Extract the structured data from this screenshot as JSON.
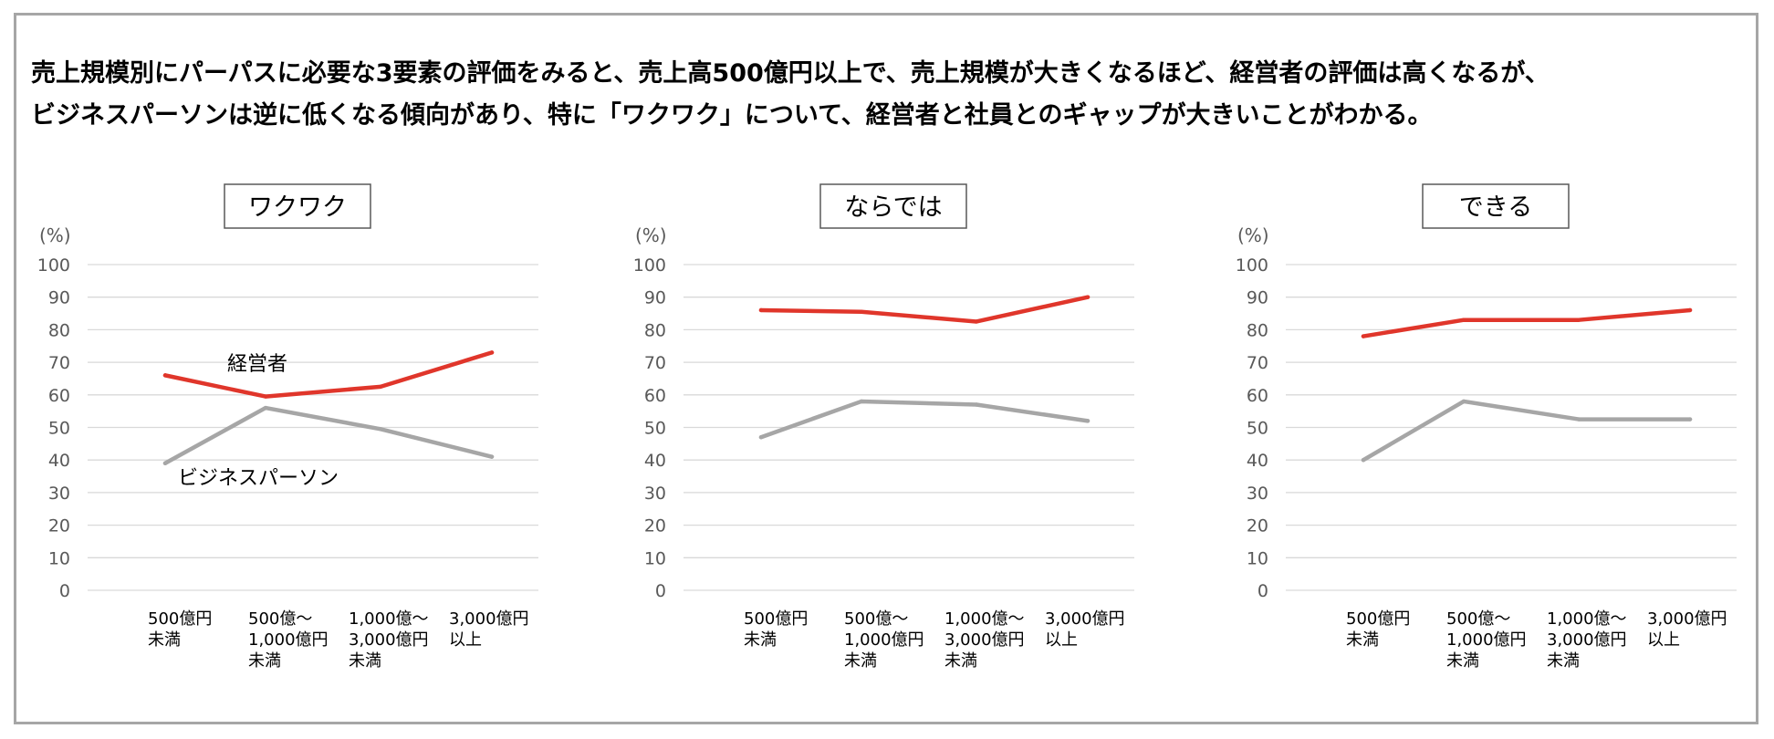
{
  "headline": {
    "line1": "売上規模別にパーパスに必要な3要素の評価をみると、売上高500億円以上で、売上規模が大きくなるほど、経営者の評価は高くなるが、",
    "line2": "ビジネスパーソンは逆に低くなる傾向があり、特に「ワクワク」について、経営者と社員とのギャップが大きいことがわかる。"
  },
  "colors": {
    "executives": "#e0362b",
    "business_persons": "#a6a6a6",
    "grid": "#d9d9d9",
    "frame": "#a6a6a6"
  },
  "chart_data": [
    {
      "type": "line",
      "title": "ワクワク",
      "unit": "(%)",
      "categories": [
        [
          "500億円",
          "未満"
        ],
        [
          "500億～",
          "1,000億円",
          "未満"
        ],
        [
          "1,000億～",
          "3,000億円",
          "未満"
        ],
        [
          "3,000億円",
          "以上"
        ]
      ],
      "yticks": [
        0,
        10,
        20,
        30,
        40,
        50,
        60,
        70,
        80,
        90,
        100
      ],
      "ylim": [
        0,
        100
      ],
      "grid": true,
      "series": [
        {
          "name": "経営者",
          "color": "#e0362b",
          "values": [
            66,
            59.5,
            62.5,
            73
          ]
        },
        {
          "name": "ビジネスパーソン",
          "color": "#a6a6a6",
          "values": [
            39,
            56,
            49.5,
            41
          ]
        }
      ]
    },
    {
      "type": "line",
      "title": "ならでは",
      "unit": "(%)",
      "categories": [
        [
          "500億円",
          "未満"
        ],
        [
          "500億～",
          "1,000億円",
          "未満"
        ],
        [
          "1,000億～",
          "3,000億円",
          "未満"
        ],
        [
          "3,000億円",
          "以上"
        ]
      ],
      "yticks": [
        0,
        10,
        20,
        30,
        40,
        50,
        60,
        70,
        80,
        90,
        100
      ],
      "ylim": [
        0,
        100
      ],
      "grid": true,
      "series": [
        {
          "color": "#e0362b",
          "values": [
            86,
            85.5,
            82.5,
            90
          ]
        },
        {
          "color": "#a6a6a6",
          "values": [
            47,
            58,
            57,
            52
          ]
        }
      ]
    },
    {
      "type": "line",
      "title": "できる",
      "unit": "(%)",
      "categories": [
        [
          "500億円",
          "未満"
        ],
        [
          "500億～",
          "1,000億円",
          "未満"
        ],
        [
          "1,000億～",
          "3,000億円",
          "未満"
        ],
        [
          "3,000億円",
          "以上"
        ]
      ],
      "yticks": [
        0,
        10,
        20,
        30,
        40,
        50,
        60,
        70,
        80,
        90,
        100
      ],
      "ylim": [
        0,
        100
      ],
      "grid": true,
      "series": [
        {
          "color": "#e0362b",
          "values": [
            78,
            83,
            83,
            86
          ]
        },
        {
          "color": "#a6a6a6",
          "values": [
            40,
            58,
            52.5,
            52.5
          ]
        }
      ]
    }
  ]
}
